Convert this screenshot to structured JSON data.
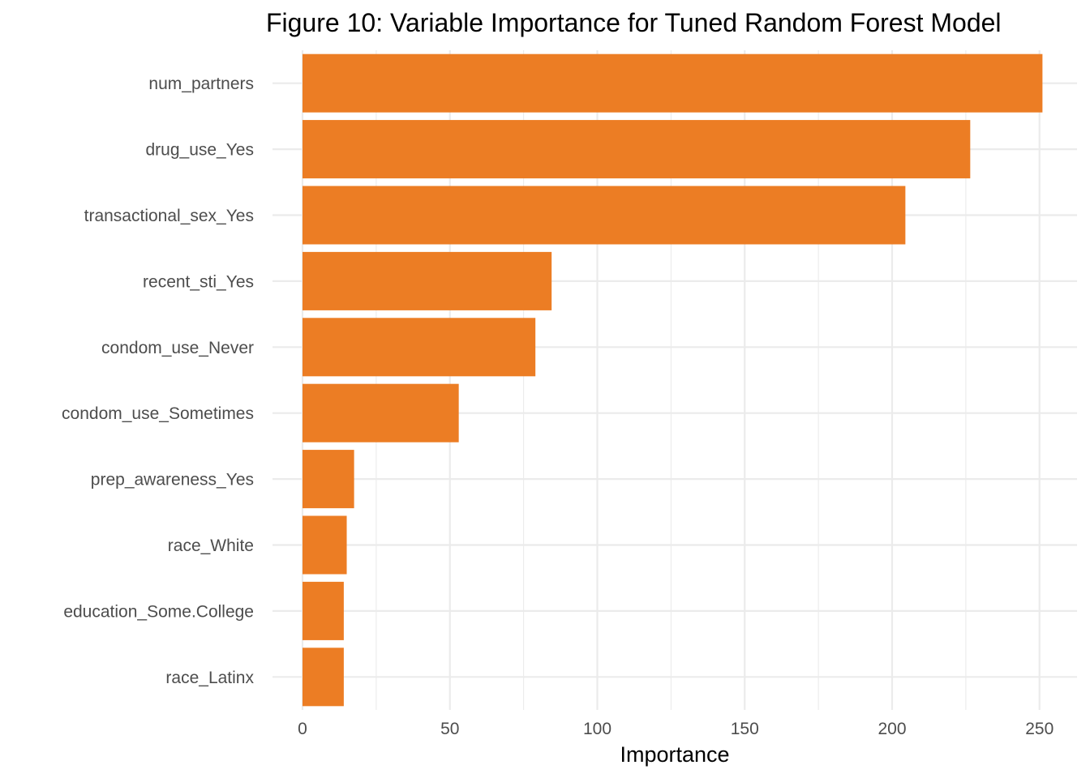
{
  "chart_data": {
    "type": "bar",
    "orientation": "horizontal",
    "title": "Figure 10: Variable Importance for Tuned Random Forest Model",
    "xlabel": "Importance",
    "ylabel": "",
    "xlim": [
      0,
      251
    ],
    "xticks": [
      0,
      50,
      100,
      150,
      200,
      250
    ],
    "grid": true,
    "legend": "none",
    "bar_color": "#ec7d24",
    "grid_color": "#ebebeb",
    "categories": [
      "num_partners",
      "drug_use_Yes",
      "transactional_sex_Yes",
      "recent_sti_Yes",
      "condom_use_Never",
      "condom_use_Sometimes",
      "prep_awareness_Yes",
      "race_White",
      "education_Some.College",
      "race_Latinx"
    ],
    "values": [
      251,
      226.5,
      204.5,
      84.5,
      79,
      53,
      17.5,
      15,
      14,
      14
    ]
  }
}
